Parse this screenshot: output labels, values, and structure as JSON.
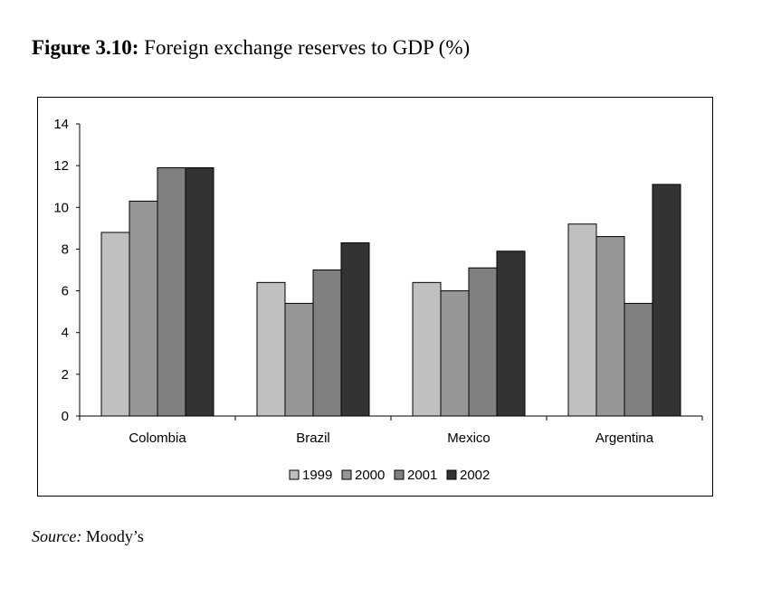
{
  "figure": {
    "label": "Figure 3.10:",
    "title": "Foreign exchange reserves to GDP (%)"
  },
  "source": {
    "label": "Source:",
    "text": "Moody’s"
  },
  "chart_data": {
    "type": "bar",
    "title": "Foreign exchange reserves to GDP (%)",
    "xlabel": "",
    "ylabel": "",
    "categories": [
      "Colombia",
      "Brazil",
      "Mexico",
      "Argentina"
    ],
    "series": [
      {
        "name": "1999",
        "color": "#c0c0c0",
        "values": [
          8.8,
          6.4,
          6.4,
          9.2
        ]
      },
      {
        "name": "2000",
        "color": "#969696",
        "values": [
          10.3,
          5.4,
          6.0,
          8.6
        ]
      },
      {
        "name": "2001",
        "color": "#808080",
        "values": [
          11.9,
          7.0,
          7.1,
          5.4
        ]
      },
      {
        "name": "2002",
        "color": "#333333",
        "values": [
          11.9,
          8.3,
          7.9,
          11.1
        ]
      }
    ],
    "ylim": [
      0,
      14
    ],
    "yticks": [
      0,
      2,
      4,
      6,
      8,
      10,
      12,
      14
    ],
    "grid": false,
    "legend": "bottom"
  }
}
